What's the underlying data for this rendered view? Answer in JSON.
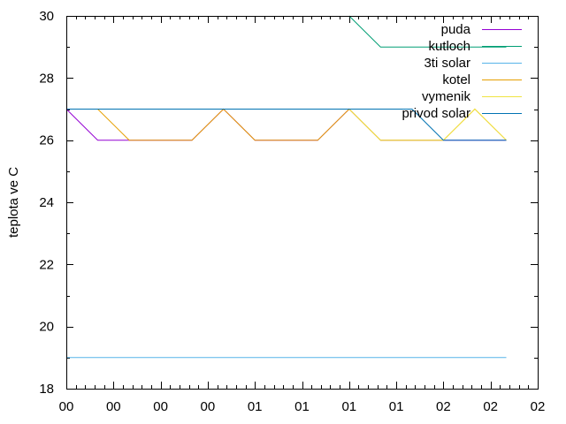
{
  "chart_data": {
    "type": "line",
    "title": "",
    "xlabel": "",
    "ylabel": "teplota ve C",
    "ylim": [
      18,
      30
    ],
    "yticks": [
      18,
      20,
      22,
      24,
      26,
      28,
      30
    ],
    "xlim": [
      0,
      15
    ],
    "xtick_labels": [
      "00",
      "00",
      "00",
      "00",
      "01",
      "01",
      "01",
      "01",
      "02",
      "02",
      "02"
    ],
    "grid": false,
    "legend_position": "top-right",
    "series": [
      {
        "name": "puda",
        "color": "#9400d3",
        "points": [
          [
            0,
            27
          ],
          [
            1,
            26
          ],
          [
            4,
            26
          ],
          [
            5,
            27
          ],
          [
            6,
            26
          ],
          [
            8,
            26
          ],
          [
            9,
            27
          ],
          [
            10,
            26
          ],
          [
            14,
            26
          ]
        ]
      },
      {
        "name": "kutloch",
        "color": "#009e73",
        "points": [
          [
            9,
            30
          ],
          [
            10,
            29
          ],
          [
            14,
            29
          ]
        ]
      },
      {
        "name": "3ti solar",
        "color": "#56b4e9",
        "points": [
          [
            0,
            19
          ],
          [
            14,
            19
          ]
        ]
      },
      {
        "name": "kotel",
        "color": "#e69f00",
        "points": [
          [
            1,
            27
          ],
          [
            2,
            26
          ],
          [
            4,
            26
          ],
          [
            5,
            27
          ],
          [
            6,
            26
          ],
          [
            8,
            26
          ],
          [
            9,
            27
          ],
          [
            10,
            26
          ],
          [
            11,
            26
          ],
          [
            12,
            26
          ],
          [
            13,
            27
          ],
          [
            14,
            26
          ]
        ]
      },
      {
        "name": "vymenik",
        "color": "#f0e442",
        "points": [
          [
            9,
            27
          ],
          [
            10,
            26
          ],
          [
            11,
            26
          ],
          [
            12,
            26
          ],
          [
            13,
            27
          ],
          [
            14,
            26
          ]
        ]
      },
      {
        "name": "privod solar",
        "color": "#0072b2",
        "points": [
          [
            0,
            27
          ],
          [
            11,
            27
          ],
          [
            12,
            26
          ],
          [
            14,
            26
          ]
        ]
      }
    ]
  }
}
